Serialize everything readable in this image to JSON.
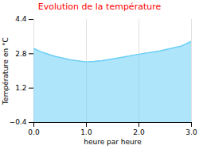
{
  "chart_data": {
    "type": "area",
    "title": "Evolution de la température",
    "title_color": "#ff0000",
    "xlabel": "heure par heure",
    "ylabel": "Température en °C",
    "x": [
      0,
      0.15,
      0.4,
      0.7,
      1.0,
      1.15,
      1.3,
      1.6,
      2.0,
      2.4,
      2.8,
      3.0
    ],
    "values": [
      3.05,
      2.88,
      2.68,
      2.52,
      2.42,
      2.44,
      2.48,
      2.6,
      2.78,
      2.93,
      3.15,
      3.38
    ],
    "color": "#6dcff6",
    "xlim": [
      0,
      3
    ],
    "xticks": [
      0,
      1,
      2,
      3
    ],
    "ylim": [
      -0.4,
      4.4
    ],
    "yticks": [
      -0.4,
      1.2,
      2.8,
      4.4
    ],
    "grid": "x"
  }
}
